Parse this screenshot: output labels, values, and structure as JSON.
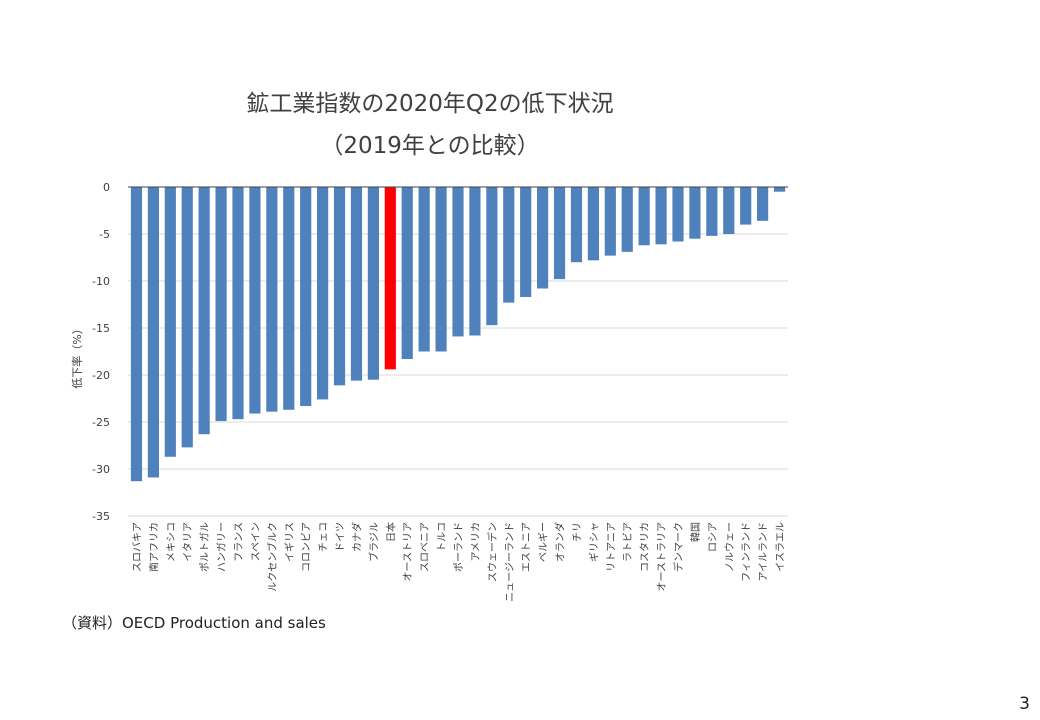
{
  "chart_data": {
    "type": "bar",
    "title": "鉱工業指数の2020年Q2の低下状況",
    "subtitle": "（2019年との比較）",
    "ylabel": "低下率（%）",
    "xlabel": "",
    "ylim": [
      -35,
      0
    ],
    "yticks": [
      0,
      -5,
      -10,
      -15,
      -20,
      -25,
      -30,
      -35
    ],
    "grid": true,
    "legend": "none",
    "categories": [
      "スロバキア",
      "南アフリカ",
      "メキシコ",
      "イタリア",
      "ポルトガル",
      "ハンガリー",
      "フランス",
      "スペイン",
      "ルクセンブルク",
      "イギリス",
      "コロンビア",
      "チェコ",
      "ドイツ",
      "カナダ",
      "ブラジル",
      "日本",
      "オーストリア",
      "スロベニア",
      "トルコ",
      "ポーランド",
      "アメリカ",
      "スウェーデン",
      "ニュージーランド",
      "エストニア",
      "ベルギー",
      "オランダ",
      "チリ",
      "ギリシャ",
      "リトアニア",
      "ラトビア",
      "コスタリカ",
      "オーストラリア",
      "デンマーク",
      "韓国",
      "ロシア",
      "ノルウェー",
      "フィンランド",
      "アイルランド",
      "イスラエル"
    ],
    "values": [
      -31.3,
      -30.9,
      -28.7,
      -27.7,
      -26.3,
      -24.9,
      -24.7,
      -24.1,
      -23.9,
      -23.7,
      -23.3,
      -22.6,
      -21.1,
      -20.6,
      -20.5,
      -19.4,
      -18.3,
      -17.5,
      -17.5,
      -15.9,
      -15.8,
      -14.7,
      -12.3,
      -11.7,
      -10.8,
      -9.8,
      -8.0,
      -7.8,
      -7.3,
      -6.9,
      -6.2,
      -6.1,
      -5.8,
      -5.5,
      -5.2,
      -5.0,
      -4.0,
      -3.6,
      -0.5
    ],
    "highlight_index": 15,
    "colors": {
      "bar": "#4f81bd",
      "highlight": "#ff0000",
      "grid": "#d9d9d9",
      "axis": "#404040"
    }
  },
  "source": "（資料）OECD Production and sales",
  "page_number": "3"
}
